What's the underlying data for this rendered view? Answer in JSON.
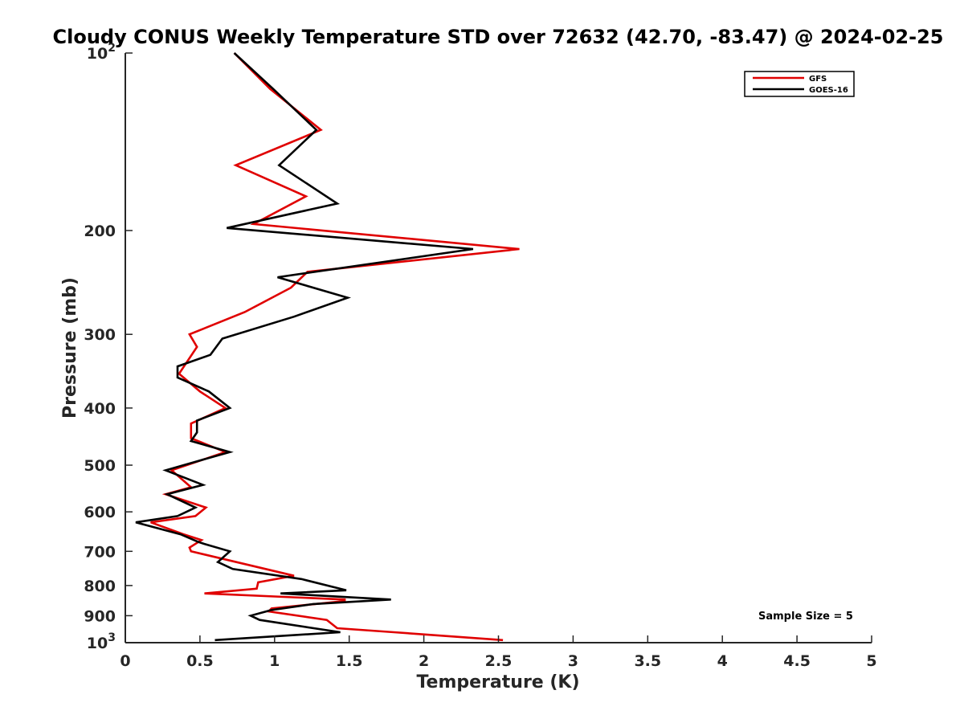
{
  "chart_data": {
    "type": "line",
    "title": "Cloudy CONUS Weekly Temperature STD over 72632 (42.70, -83.47) @ 2024-02-25",
    "xlabel": "Temperature (K)",
    "ylabel": "Pressure (mb)",
    "xlim": [
      0,
      5
    ],
    "ylim": [
      100,
      1000
    ],
    "y_scale": "log",
    "y_reversed": true,
    "x_ticks": [
      0,
      0.5,
      1,
      1.5,
      2,
      2.5,
      3,
      3.5,
      4,
      4.5,
      5
    ],
    "x_tick_labels": [
      "0",
      "0.5",
      "1",
      "1.5",
      "2",
      "2.5",
      "3",
      "3.5",
      "4",
      "4.5",
      "5"
    ],
    "y_ticks": [
      100,
      200,
      300,
      400,
      500,
      600,
      700,
      800,
      900,
      1000
    ],
    "y_tick_labels": [
      {
        "base": "10",
        "exp": "2"
      },
      {
        "base": "200",
        "exp": ""
      },
      {
        "base": "300",
        "exp": ""
      },
      {
        "base": "400",
        "exp": ""
      },
      {
        "base": "500",
        "exp": ""
      },
      {
        "base": "600",
        "exp": ""
      },
      {
        "base": "700",
        "exp": ""
      },
      {
        "base": "800",
        "exp": ""
      },
      {
        "base": "900",
        "exp": ""
      },
      {
        "base": "10",
        "exp": "3"
      }
    ],
    "grid": false,
    "legend_position": "top-right",
    "series": [
      {
        "name": "GFS",
        "color": "#e00000",
        "points": [
          [
            0.73,
            100
          ],
          [
            0.97,
            115
          ],
          [
            1.31,
            135
          ],
          [
            0.74,
            155
          ],
          [
            1.21,
            175
          ],
          [
            0.86,
            195
          ],
          [
            2.64,
            215
          ],
          [
            1.22,
            235
          ],
          [
            1.11,
            250
          ],
          [
            0.8,
            275
          ],
          [
            0.43,
            300
          ],
          [
            0.48,
            315
          ],
          [
            0.36,
            350
          ],
          [
            0.5,
            375
          ],
          [
            0.67,
            400
          ],
          [
            0.44,
            425
          ],
          [
            0.44,
            450
          ],
          [
            0.67,
            475
          ],
          [
            0.31,
            510
          ],
          [
            0.44,
            545
          ],
          [
            0.27,
            560
          ],
          [
            0.54,
            590
          ],
          [
            0.47,
            610
          ],
          [
            0.17,
            625
          ],
          [
            0.39,
            655
          ],
          [
            0.51,
            670
          ],
          [
            0.43,
            690
          ],
          [
            0.44,
            700
          ],
          [
            1.13,
            770
          ],
          [
            0.89,
            790
          ],
          [
            0.88,
            810
          ],
          [
            0.53,
            825
          ],
          [
            1.47,
            845
          ],
          [
            1.47,
            850
          ],
          [
            0.98,
            875
          ],
          [
            0.96,
            885
          ],
          [
            1.35,
            915
          ],
          [
            1.42,
            945
          ],
          [
            1.8,
            960
          ],
          [
            2.53,
            990
          ]
        ]
      },
      {
        "name": "GOES-16",
        "color": "#000000",
        "points": [
          [
            0.73,
            100
          ],
          [
            0.99,
            115
          ],
          [
            1.28,
            135
          ],
          [
            1.03,
            155
          ],
          [
            1.42,
            180
          ],
          [
            0.68,
            198
          ],
          [
            2.33,
            215
          ],
          [
            1.02,
            240
          ],
          [
            1.49,
            260
          ],
          [
            1.13,
            280
          ],
          [
            0.65,
            305
          ],
          [
            0.57,
            325
          ],
          [
            0.35,
            340
          ],
          [
            0.35,
            355
          ],
          [
            0.56,
            375
          ],
          [
            0.7,
            400
          ],
          [
            0.48,
            420
          ],
          [
            0.48,
            440
          ],
          [
            0.44,
            455
          ],
          [
            0.7,
            475
          ],
          [
            0.27,
            510
          ],
          [
            0.52,
            540
          ],
          [
            0.28,
            560
          ],
          [
            0.47,
            590
          ],
          [
            0.35,
            610
          ],
          [
            0.07,
            625
          ],
          [
            0.37,
            655
          ],
          [
            0.49,
            675
          ],
          [
            0.53,
            680
          ],
          [
            0.7,
            700
          ],
          [
            0.62,
            730
          ],
          [
            0.72,
            750
          ],
          [
            1.18,
            780
          ],
          [
            1.48,
            815
          ],
          [
            1.04,
            825
          ],
          [
            1.78,
            845
          ],
          [
            1.26,
            860
          ],
          [
            0.98,
            880
          ],
          [
            0.84,
            900
          ],
          [
            0.9,
            915
          ],
          [
            1.44,
            960
          ],
          [
            0.6,
            990
          ]
        ]
      }
    ],
    "annotations": [
      "Sample Size = 5"
    ]
  }
}
